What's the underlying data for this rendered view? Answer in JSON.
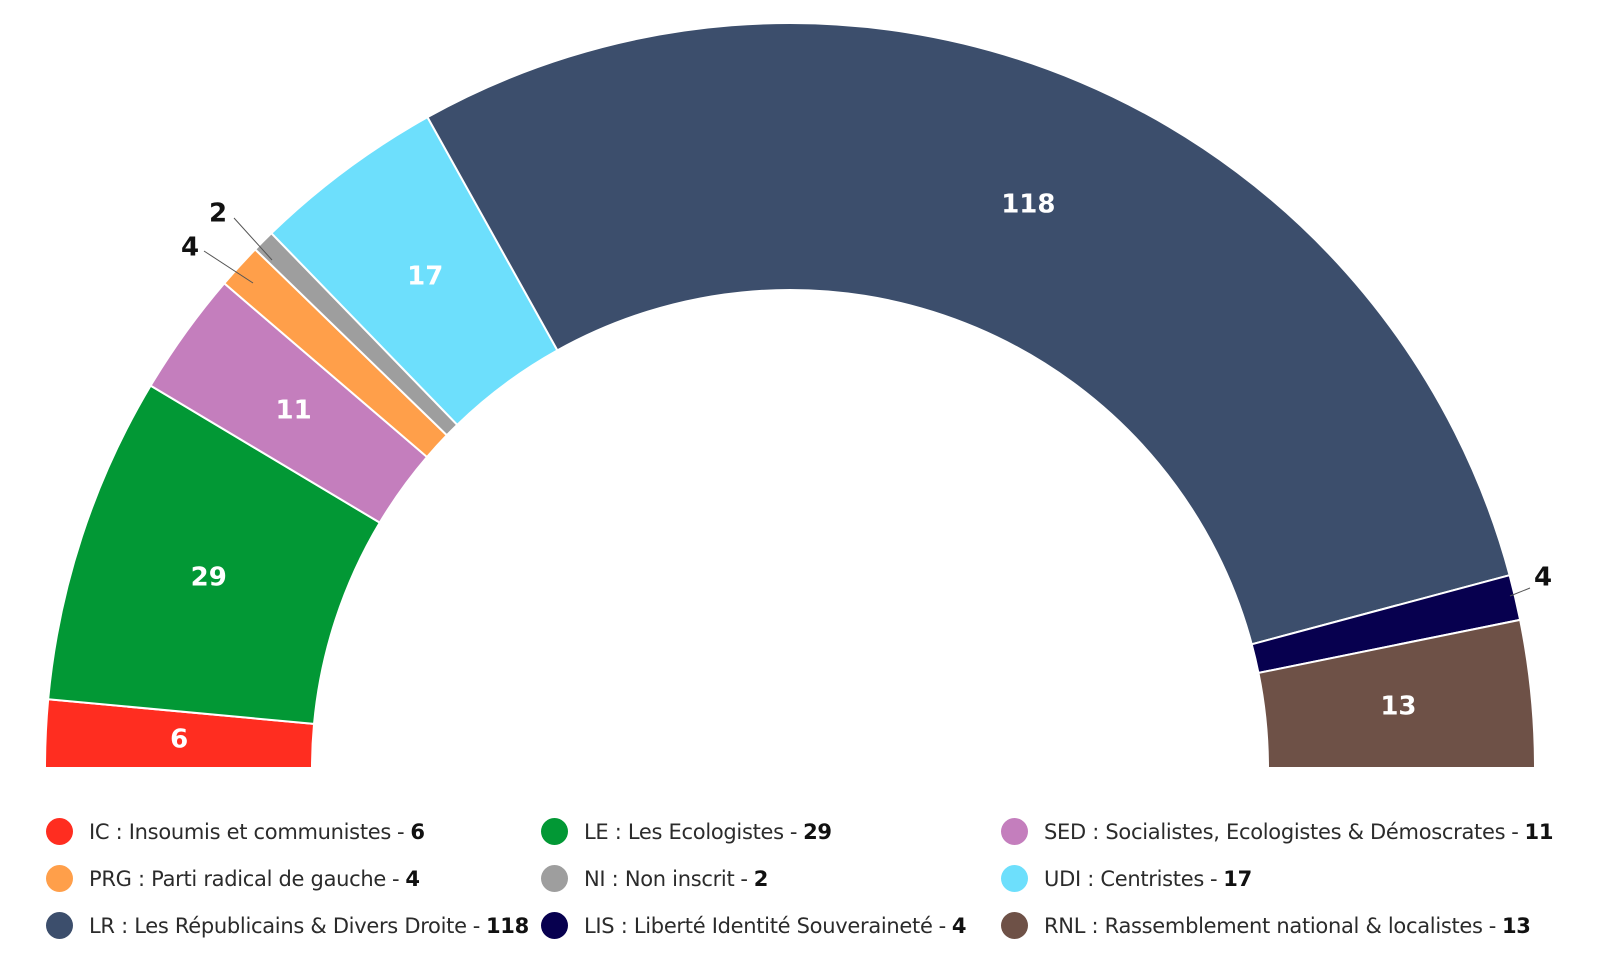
{
  "chart_data": {
    "type": "pie",
    "style": "semicircle-parliament",
    "title": "",
    "categories": [
      "IC : Insoumis et communistes",
      "LE : Les Ecologistes",
      "SED : Socialistes, Ecologistes & Démoscrates",
      "PRG : Parti radical de gauche",
      "NI : Non inscrit",
      "UDI : Centristes",
      "LR : Les Républicains & Divers Droite",
      "LIS : Liberté Identité Souveraineté",
      "RNL : Rassemblement national & localistes"
    ],
    "values": [
      6,
      29,
      11,
      4,
      2,
      17,
      118,
      4,
      13
    ],
    "colors": [
      "#ff2d20",
      "#029835",
      "#c47ebd",
      "#ff9f4a",
      "#9e9e9e",
      "#6ddffc",
      "#3c4e6c",
      "#07004f",
      "#6e5147"
    ],
    "value_labels": [
      "6",
      "29",
      "11",
      "4",
      "2",
      "17",
      "118",
      "4",
      "13"
    ],
    "separator": "-",
    "legend_position": "bottom",
    "legend_columns": 3
  }
}
